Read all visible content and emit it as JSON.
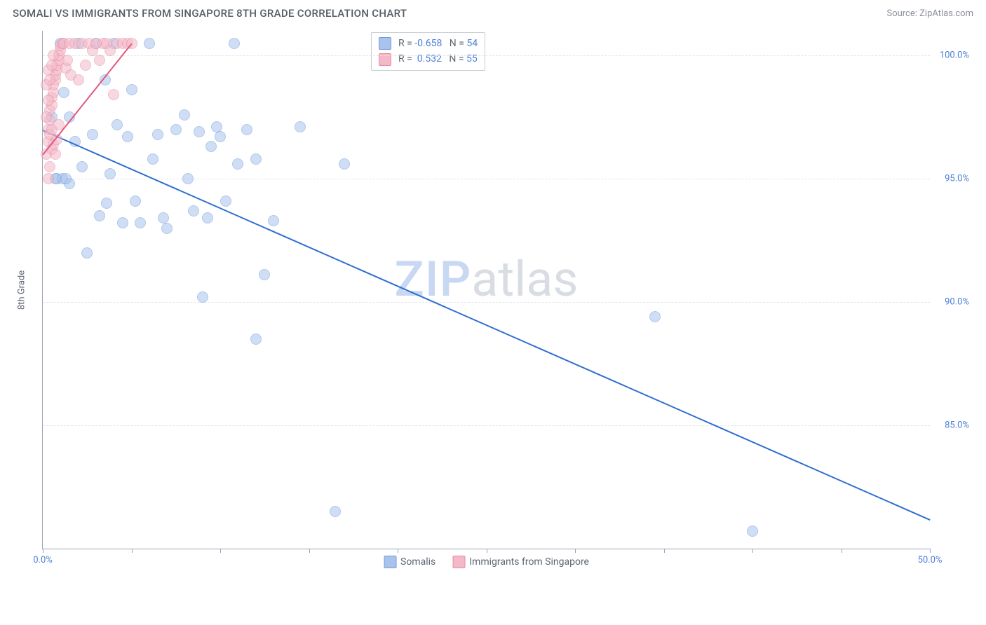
{
  "header": {
    "title": "SOMALI VS IMMIGRANTS FROM SINGAPORE 8TH GRADE CORRELATION CHART",
    "source": "Source: ZipAtlas.com"
  },
  "chart": {
    "type": "scatter",
    "y_axis_title": "8th Grade",
    "xlim": [
      0,
      50
    ],
    "ylim": [
      80,
      101
    ],
    "xticks": [
      0,
      5,
      10,
      15,
      20,
      25,
      30,
      35,
      40,
      45,
      50
    ],
    "xtick_labels": {
      "0": "0.0%",
      "50": "50.0%"
    },
    "yticks": [
      85,
      90,
      95,
      100
    ],
    "ytick_labels": {
      "85": "85.0%",
      "90": "90.0%",
      "95": "95.0%",
      "100": "100.0%"
    },
    "background_color": "#ffffff",
    "grid_color": "#e2e5ea",
    "axis_color": "#9aa4b2",
    "label_color": "#4a7fd6",
    "marker_radius": 8,
    "marker_opacity": 0.55,
    "series": [
      {
        "name": "Somalis",
        "fill": "#a9c4ec",
        "stroke": "#6f9bdc",
        "trend_color": "#2f6fd0",
        "trend": {
          "x1": 0,
          "y1": 97.0,
          "x2": 50,
          "y2": 81.2
        },
        "R": "-0.658",
        "N": "54",
        "points": [
          [
            0.5,
            97.5
          ],
          [
            0.8,
            95.0
          ],
          [
            1.0,
            100.5
          ],
          [
            1.2,
            98.5
          ],
          [
            1.5,
            94.8
          ],
          [
            1.5,
            97.5
          ],
          [
            1.8,
            96.5
          ],
          [
            2.0,
            100.5
          ],
          [
            2.2,
            95.5
          ],
          [
            2.5,
            92.0
          ],
          [
            2.8,
            96.8
          ],
          [
            3.0,
            100.5
          ],
          [
            3.2,
            93.5
          ],
          [
            3.5,
            99.0
          ],
          [
            3.8,
            95.2
          ],
          [
            4.0,
            100.5
          ],
          [
            4.2,
            97.2
          ],
          [
            4.5,
            93.2
          ],
          [
            4.8,
            96.7
          ],
          [
            5.0,
            98.6
          ],
          [
            5.2,
            94.1
          ],
          [
            5.5,
            93.2
          ],
          [
            6.0,
            100.5
          ],
          [
            6.2,
            95.8
          ],
          [
            6.5,
            96.8
          ],
          [
            6.8,
            93.4
          ],
          [
            7.0,
            93.0
          ],
          [
            7.5,
            97.0
          ],
          [
            8.0,
            97.6
          ],
          [
            8.2,
            95.0
          ],
          [
            8.5,
            93.7
          ],
          [
            8.8,
            96.9
          ],
          [
            9.0,
            90.2
          ],
          [
            9.3,
            93.4
          ],
          [
            9.5,
            96.3
          ],
          [
            9.8,
            97.1
          ],
          [
            10.0,
            96.7
          ],
          [
            10.3,
            94.1
          ],
          [
            10.8,
            100.5
          ],
          [
            11.0,
            95.6
          ],
          [
            11.5,
            97.0
          ],
          [
            12.0,
            88.5
          ],
          [
            12.0,
            95.8
          ],
          [
            12.5,
            91.1
          ],
          [
            13.0,
            93.3
          ],
          [
            14.5,
            97.1
          ],
          [
            16.5,
            81.5
          ],
          [
            17.0,
            95.6
          ],
          [
            34.5,
            89.4
          ],
          [
            40.0,
            80.7
          ],
          [
            0.7,
            95.0
          ],
          [
            1.1,
            95.0
          ],
          [
            1.3,
            95.0
          ],
          [
            3.6,
            94.0
          ]
        ]
      },
      {
        "name": "Immigrants from Singapore",
        "fill": "#f4b9c8",
        "stroke": "#e88aa3",
        "trend_color": "#e15a7e",
        "trend": {
          "x1": 0,
          "y1": 96.0,
          "x2": 5,
          "y2": 100.5
        },
        "R": "0.532",
        "N": "55",
        "points": [
          [
            0.2,
            96.0
          ],
          [
            0.3,
            96.5
          ],
          [
            0.3,
            97.0
          ],
          [
            0.4,
            97.4
          ],
          [
            0.4,
            97.8
          ],
          [
            0.5,
            98.0
          ],
          [
            0.5,
            98.3
          ],
          [
            0.6,
            98.5
          ],
          [
            0.6,
            98.8
          ],
          [
            0.7,
            99.0
          ],
          [
            0.7,
            99.2
          ],
          [
            0.8,
            99.4
          ],
          [
            0.8,
            99.6
          ],
          [
            0.9,
            99.8
          ],
          [
            0.9,
            100.0
          ],
          [
            1.0,
            100.2
          ],
          [
            1.0,
            100.4
          ],
          [
            1.1,
            100.5
          ],
          [
            1.2,
            100.5
          ],
          [
            1.3,
            99.5
          ],
          [
            1.4,
            99.8
          ],
          [
            1.5,
            100.5
          ],
          [
            1.6,
            99.2
          ],
          [
            1.8,
            100.5
          ],
          [
            2.0,
            99.0
          ],
          [
            2.2,
            100.5
          ],
          [
            2.4,
            99.6
          ],
          [
            2.6,
            100.5
          ],
          [
            2.8,
            100.2
          ],
          [
            3.0,
            100.5
          ],
          [
            3.2,
            99.8
          ],
          [
            3.4,
            100.5
          ],
          [
            3.6,
            100.5
          ],
          [
            3.8,
            100.2
          ],
          [
            4.0,
            98.4
          ],
          [
            4.2,
            100.5
          ],
          [
            4.5,
            100.5
          ],
          [
            4.8,
            100.5
          ],
          [
            5.0,
            100.5
          ],
          [
            0.3,
            95.0
          ],
          [
            0.4,
            95.5
          ],
          [
            0.5,
            96.2
          ],
          [
            0.2,
            97.5
          ],
          [
            0.3,
            98.2
          ],
          [
            0.4,
            96.8
          ],
          [
            0.5,
            97.0
          ],
          [
            0.6,
            96.4
          ],
          [
            0.7,
            96.0
          ],
          [
            0.8,
            96.6
          ],
          [
            0.9,
            97.2
          ],
          [
            0.2,
            98.8
          ],
          [
            0.3,
            99.4
          ],
          [
            0.4,
            99.0
          ],
          [
            0.5,
            99.6
          ],
          [
            0.6,
            100.0
          ]
        ]
      }
    ],
    "watermark": {
      "zip": "ZIP",
      "atlas": "atlas"
    },
    "bottom_legend": [
      {
        "label": "Somalis",
        "fill": "#a9c4ec",
        "stroke": "#6f9bdc"
      },
      {
        "label": "Immigrants from Singapore",
        "fill": "#f4b9c8",
        "stroke": "#e88aa3"
      }
    ]
  }
}
